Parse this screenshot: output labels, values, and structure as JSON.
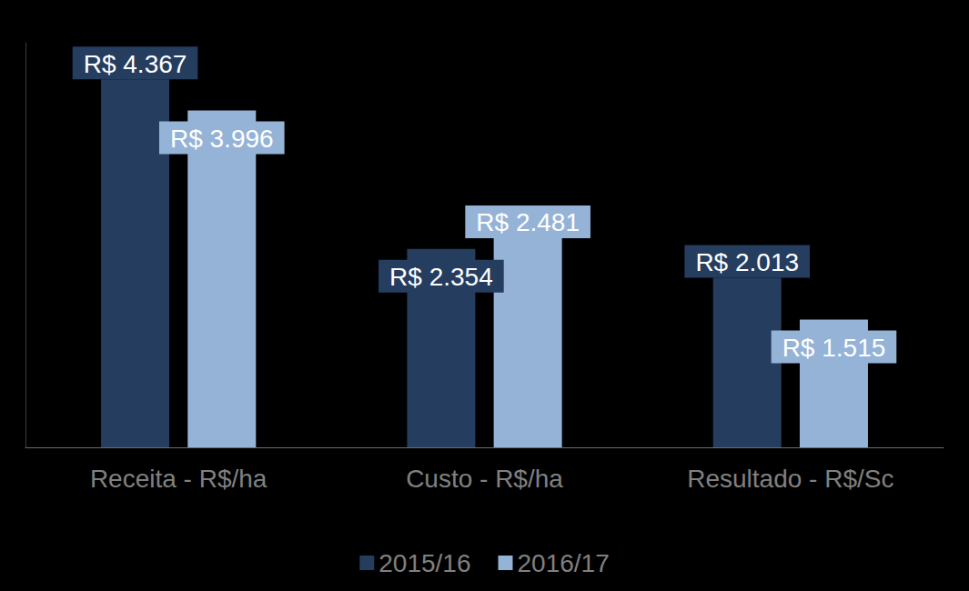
{
  "chart_data": {
    "type": "bar",
    "categories": [
      "Receita - R$/ha",
      "Custo - R$/ha",
      "Resultado - R$/Sc"
    ],
    "series": [
      {
        "name": "2015/16",
        "color": "#253d5f",
        "values": [
          4367,
          2354,
          2013
        ],
        "value_labels": [
          "R$ 4.367",
          "R$ 2.354",
          "R$ 2.013"
        ]
      },
      {
        "name": "2016/17",
        "color": "#95b3d7",
        "values": [
          3996,
          2481,
          1515
        ],
        "value_labels": [
          "R$ 3.996",
          "R$ 2.481",
          "R$ 1.515"
        ]
      }
    ],
    "ylim": [
      0,
      4800
    ],
    "grid": false,
    "legend": "bottom",
    "data_labels": true,
    "tick_labels": "x"
  }
}
